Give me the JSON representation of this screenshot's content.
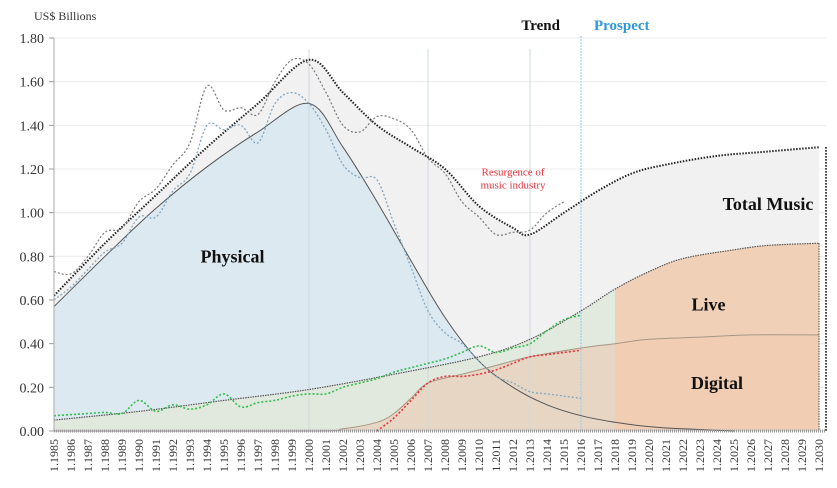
{
  "chart_data": {
    "type": "area",
    "title": "",
    "unit_label": "US$ Billions",
    "xlabel": "",
    "ylabel": "US$ Billions",
    "ylim": [
      0,
      1.8
    ],
    "xlim": [
      1985,
      2030
    ],
    "y_ticks": [
      "0.00",
      "0.20",
      "0.40",
      "0.60",
      "0.80",
      "1.00",
      "1.20",
      "1.40",
      "1.60",
      "1.80"
    ],
    "y_tick_values": [
      0,
      0.2,
      0.4,
      0.6,
      0.8,
      1.0,
      1.2,
      1.4,
      1.6,
      1.8
    ],
    "x_tick_prefix": "1.",
    "x_years": [
      1985,
      1986,
      1987,
      1988,
      1989,
      1990,
      1991,
      1992,
      1993,
      1994,
      1995,
      1996,
      1997,
      1998,
      1999,
      2000,
      2001,
      2002,
      2003,
      2004,
      2005,
      2006,
      2007,
      2008,
      2009,
      2010,
      2011,
      2012,
      2013,
      2014,
      2015,
      2016,
      2017,
      2018,
      2019,
      2020,
      2021,
      2022,
      2023,
      2024,
      2025,
      2026,
      2027,
      2028,
      2029,
      2030
    ],
    "grid": true,
    "legend": "none (inline region labels)",
    "section_headers": {
      "trend": "Trend",
      "prospect": "Prospect",
      "divider_year": 2016
    },
    "section_colors": {
      "trend": "#111111",
      "prospect": "#2f97d8"
    },
    "annotation": {
      "text_line1": "Resurgence of",
      "text_line2": "music industry",
      "year": 2012,
      "value": 1.05,
      "color": "#e8323c"
    },
    "region_labels": {
      "total": {
        "text": "Total Music",
        "year": 2027,
        "value": 1.04
      },
      "physical": {
        "text": "Physical",
        "year": 1995.5,
        "value": 0.8
      },
      "live": {
        "text": "Live",
        "year": 2023.5,
        "value": 0.58
      },
      "digital": {
        "text": "Digital",
        "year": 2024,
        "value": 0.22
      }
    },
    "colors": {
      "total_fill": "#f1f1f1",
      "physical_fill": "#dde9f1",
      "live_fill": "#e0e8dc",
      "digital_fill": "#e7d6c4",
      "digital_prospect_fill": "#f2cdb0",
      "trend_line": "#333333",
      "physical_actual": "#7fa7c2",
      "live_actual": "#2fbf4a",
      "digital_actual": "#e8323c",
      "total_actual": "#777777",
      "prospect_divider": "#9fd0ee"
    },
    "series": [
      {
        "name": "Total Music (trend)",
        "style": "area+dotted",
        "points": [
          [
            1985,
            0.62
          ],
          [
            1988,
            0.86
          ],
          [
            1991,
            1.08
          ],
          [
            1994,
            1.3
          ],
          [
            1997,
            1.5
          ],
          [
            2000,
            1.7
          ],
          [
            2002,
            1.55
          ],
          [
            2004,
            1.4
          ],
          [
            2006,
            1.3
          ],
          [
            2008,
            1.2
          ],
          [
            2010,
            1.03
          ],
          [
            2012,
            0.93
          ],
          [
            2013,
            0.9
          ],
          [
            2015,
            1.0
          ],
          [
            2017,
            1.1
          ],
          [
            2019,
            1.18
          ],
          [
            2021,
            1.22
          ],
          [
            2024,
            1.26
          ],
          [
            2027,
            1.28
          ],
          [
            2030,
            1.3
          ]
        ]
      },
      {
        "name": "Total Music (actual)",
        "style": "dotted",
        "points": [
          [
            1985,
            0.73
          ],
          [
            1986,
            0.72
          ],
          [
            1987,
            0.8
          ],
          [
            1988,
            0.91
          ],
          [
            1989,
            0.93
          ],
          [
            1990,
            1.05
          ],
          [
            1991,
            1.11
          ],
          [
            1992,
            1.22
          ],
          [
            1993,
            1.32
          ],
          [
            1994,
            1.58
          ],
          [
            1995,
            1.47
          ],
          [
            1996,
            1.48
          ],
          [
            1997,
            1.45
          ],
          [
            1998,
            1.6
          ],
          [
            1999,
            1.7
          ],
          [
            2000,
            1.68
          ],
          [
            2001,
            1.55
          ],
          [
            2002,
            1.4
          ],
          [
            2003,
            1.37
          ],
          [
            2004,
            1.44
          ],
          [
            2005,
            1.43
          ],
          [
            2006,
            1.38
          ],
          [
            2007,
            1.25
          ],
          [
            2008,
            1.18
          ],
          [
            2009,
            1.05
          ],
          [
            2010,
            0.98
          ],
          [
            2011,
            0.9
          ],
          [
            2012,
            0.91
          ],
          [
            2013,
            0.92
          ],
          [
            2014,
            1.0
          ],
          [
            2015,
            1.05
          ]
        ]
      },
      {
        "name": "Physical (trend)",
        "style": "area",
        "points": [
          [
            1985,
            0.57
          ],
          [
            1988,
            0.8
          ],
          [
            1991,
            1.02
          ],
          [
            1994,
            1.21
          ],
          [
            1997,
            1.37
          ],
          [
            2000,
            1.5
          ],
          [
            2002,
            1.3
          ],
          [
            2004,
            1.05
          ],
          [
            2006,
            0.78
          ],
          [
            2008,
            0.52
          ],
          [
            2010,
            0.32
          ],
          [
            2012,
            0.2
          ],
          [
            2014,
            0.12
          ],
          [
            2016,
            0.07
          ],
          [
            2018,
            0.04
          ],
          [
            2020,
            0.02
          ],
          [
            2022,
            0.01
          ],
          [
            2025,
            0.0
          ]
        ]
      },
      {
        "name": "Physical (actual)",
        "style": "dotted",
        "points": [
          [
            1985,
            0.6
          ],
          [
            1986,
            0.66
          ],
          [
            1987,
            0.74
          ],
          [
            1988,
            0.82
          ],
          [
            1989,
            0.86
          ],
          [
            1990,
            0.98
          ],
          [
            1991,
            0.98
          ],
          [
            1992,
            1.1
          ],
          [
            1993,
            1.18
          ],
          [
            1994,
            1.4
          ],
          [
            1995,
            1.38
          ],
          [
            1996,
            1.4
          ],
          [
            1997,
            1.32
          ],
          [
            1998,
            1.5
          ],
          [
            1999,
            1.55
          ],
          [
            2000,
            1.5
          ],
          [
            2001,
            1.38
          ],
          [
            2002,
            1.22
          ],
          [
            2003,
            1.16
          ],
          [
            2004,
            1.15
          ],
          [
            2005,
            0.95
          ],
          [
            2006,
            0.75
          ],
          [
            2007,
            0.55
          ],
          [
            2008,
            0.45
          ],
          [
            2009,
            0.4
          ],
          [
            2010,
            0.32
          ],
          [
            2011,
            0.25
          ],
          [
            2012,
            0.22
          ],
          [
            2013,
            0.18
          ],
          [
            2014,
            0.17
          ],
          [
            2015,
            0.16
          ],
          [
            2016,
            0.15
          ]
        ]
      },
      {
        "name": "Live (trend)",
        "style": "area",
        "points": [
          [
            1985,
            0.05
          ],
          [
            1990,
            0.09
          ],
          [
            1995,
            0.14
          ],
          [
            2000,
            0.19
          ],
          [
            2005,
            0.26
          ],
          [
            2010,
            0.34
          ],
          [
            2013,
            0.42
          ],
          [
            2016,
            0.55
          ],
          [
            2018,
            0.65
          ],
          [
            2020,
            0.73
          ],
          [
            2022,
            0.79
          ],
          [
            2025,
            0.83
          ],
          [
            2027,
            0.85
          ],
          [
            2030,
            0.86
          ]
        ]
      },
      {
        "name": "Live (actual)",
        "style": "dotted",
        "points": [
          [
            1985,
            0.07
          ],
          [
            1986,
            0.075
          ],
          [
            1987,
            0.08
          ],
          [
            1988,
            0.085
          ],
          [
            1989,
            0.08
          ],
          [
            1990,
            0.14
          ],
          [
            1991,
            0.09
          ],
          [
            1992,
            0.12
          ],
          [
            1993,
            0.1
          ],
          [
            1994,
            0.12
          ],
          [
            1995,
            0.17
          ],
          [
            1996,
            0.11
          ],
          [
            1997,
            0.13
          ],
          [
            1998,
            0.14
          ],
          [
            1999,
            0.16
          ],
          [
            2000,
            0.17
          ],
          [
            2001,
            0.17
          ],
          [
            2002,
            0.2
          ],
          [
            2003,
            0.22
          ],
          [
            2004,
            0.24
          ],
          [
            2005,
            0.27
          ],
          [
            2006,
            0.29
          ],
          [
            2007,
            0.31
          ],
          [
            2008,
            0.33
          ],
          [
            2009,
            0.36
          ],
          [
            2010,
            0.39
          ],
          [
            2011,
            0.36
          ],
          [
            2012,
            0.38
          ],
          [
            2013,
            0.4
          ],
          [
            2014,
            0.46
          ],
          [
            2015,
            0.51
          ],
          [
            2016,
            0.53
          ]
        ]
      },
      {
        "name": "Digital (trend)",
        "style": "area",
        "points": [
          [
            1985,
            0.0
          ],
          [
            2000,
            0.0
          ],
          [
            2002,
            0.01
          ],
          [
            2004,
            0.04
          ],
          [
            2005,
            0.08
          ],
          [
            2006,
            0.15
          ],
          [
            2007,
            0.22
          ],
          [
            2009,
            0.26
          ],
          [
            2011,
            0.3
          ],
          [
            2013,
            0.34
          ],
          [
            2016,
            0.38
          ],
          [
            2018,
            0.4
          ],
          [
            2020,
            0.42
          ],
          [
            2023,
            0.43
          ],
          [
            2026,
            0.44
          ],
          [
            2030,
            0.44
          ]
        ]
      },
      {
        "name": "Digital (actual)",
        "style": "dotted",
        "points": [
          [
            2004,
            0.0
          ],
          [
            2005,
            0.06
          ],
          [
            2006,
            0.14
          ],
          [
            2007,
            0.22
          ],
          [
            2008,
            0.25
          ],
          [
            2009,
            0.25
          ],
          [
            2010,
            0.26
          ],
          [
            2011,
            0.28
          ],
          [
            2012,
            0.31
          ],
          [
            2013,
            0.34
          ],
          [
            2014,
            0.35
          ],
          [
            2015,
            0.36
          ],
          [
            2016,
            0.37
          ]
        ]
      }
    ]
  }
}
